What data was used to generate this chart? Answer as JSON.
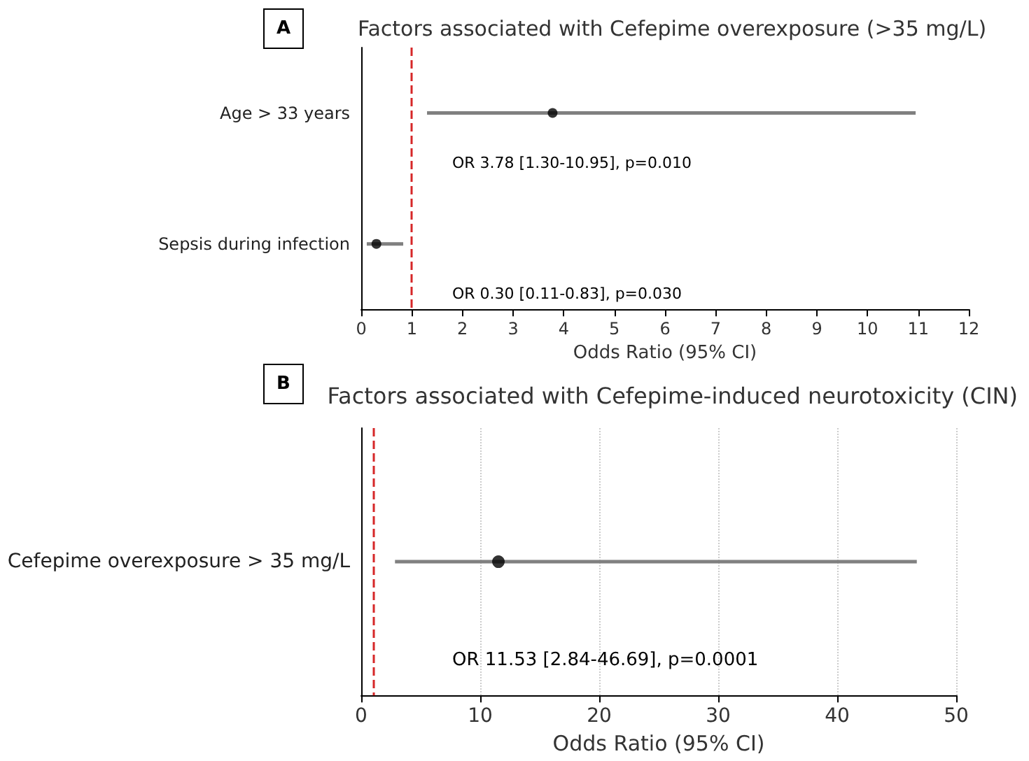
{
  "chart_data": [
    {
      "type": "scatter",
      "orientation": "horizontal",
      "title": "Factors associated with Cefepime overexposure (>35 mg/L)",
      "xlabel": "Odds Ratio (95% CI)",
      "categories": [
        "Age > 33 years",
        "Sepsis during infection"
      ],
      "series": [
        {
          "color": "#000000",
          "values": [
            3.78,
            0.3
          ],
          "errors": [
            [
              1.3,
              10.95
            ],
            [
              0.11,
              0.83
            ]
          ]
        }
      ],
      "xlim": [
        0,
        12
      ],
      "xticks": [
        0,
        1,
        2,
        3,
        4,
        5,
        6,
        7,
        8,
        9,
        10,
        11,
        12
      ],
      "grid": false,
      "marker": "circle",
      "ref_lines": [
        {
          "axis": "x",
          "value": 1,
          "color": "#d62728",
          "line_style": "dashed"
        }
      ],
      "annotations": [
        "A",
        "OR 3.78 [1.30-10.95], p=0.010",
        "OR 0.30 [0.11-0.83], p=0.030"
      ]
    },
    {
      "type": "scatter",
      "orientation": "horizontal",
      "title": "Factors associated with Cefepime-induced neurotoxicity (CIN)",
      "xlabel": "Odds Ratio (95% CI)",
      "categories": [
        "Cefepime overexposure > 35 mg/L"
      ],
      "series": [
        {
          "color": "#000000",
          "values": [
            11.53
          ],
          "errors": [
            [
              2.84,
              46.69
            ]
          ]
        }
      ],
      "xlim": [
        0,
        50
      ],
      "xticks": [
        0,
        10,
        20,
        30,
        40,
        50
      ],
      "grid": "x",
      "marker": "circle",
      "ref_lines": [
        {
          "axis": "x",
          "value": 1,
          "color": "#d62728",
          "line_style": "dashed"
        }
      ],
      "annotations": [
        "B",
        "OR 11.53 [2.84-46.69], p=0.0001"
      ]
    }
  ]
}
